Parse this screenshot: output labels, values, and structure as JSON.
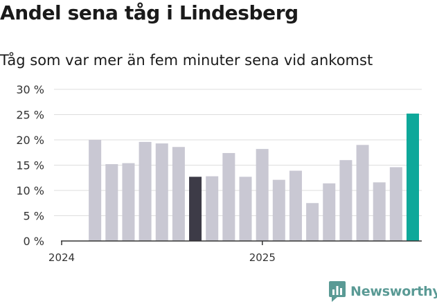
{
  "title": "Andel sena tåg i Lindesberg",
  "subtitle": "Tåg som var mer än fem minuter sena vid ankomst",
  "chart_data": {
    "type": "bar",
    "x": [
      "2024-01",
      "2024-02",
      "2024-03",
      "2024-04",
      "2024-05",
      "2024-06",
      "2024-07",
      "2024-08",
      "2024-09",
      "2024-10",
      "2024-11",
      "2024-12",
      "2025-01",
      "2025-02",
      "2025-03",
      "2025-04",
      "2025-05",
      "2025-06",
      "2025-07",
      "2025-08",
      "2025-09"
    ],
    "values": [
      null,
      20.0,
      15.2,
      15.4,
      19.6,
      19.3,
      18.6,
      12.7,
      12.8,
      17.4,
      12.7,
      18.2,
      12.1,
      13.9,
      7.5,
      11.4,
      16.0,
      19.0,
      11.6,
      14.6,
      25.2
    ],
    "ylim": [
      0,
      30
    ],
    "yticks": [
      0,
      5,
      10,
      15,
      20,
      25,
      30
    ],
    "ytick_labels": [
      "0 %",
      "5 %",
      "10 %",
      "15 %",
      "20 %",
      "25 %",
      "30 %"
    ],
    "xtick_labels": [
      {
        "label": "2024",
        "x": "2024-01"
      },
      {
        "label": "2025",
        "x": "2025-01"
      }
    ],
    "grid": true,
    "colors": {
      "default": "#c9c8d3",
      "highlight_dark": "#3d3b47",
      "highlight_latest": "#0ea89a",
      "grid": "#dddddd",
      "axis": "#333333"
    },
    "highlights": {
      "2024-08": "highlight_dark",
      "2025-09": "highlight_latest"
    }
  },
  "brand": {
    "name": "Newsworthy",
    "icon": "newsworthy-logo-icon",
    "color": "#5a9a95"
  }
}
